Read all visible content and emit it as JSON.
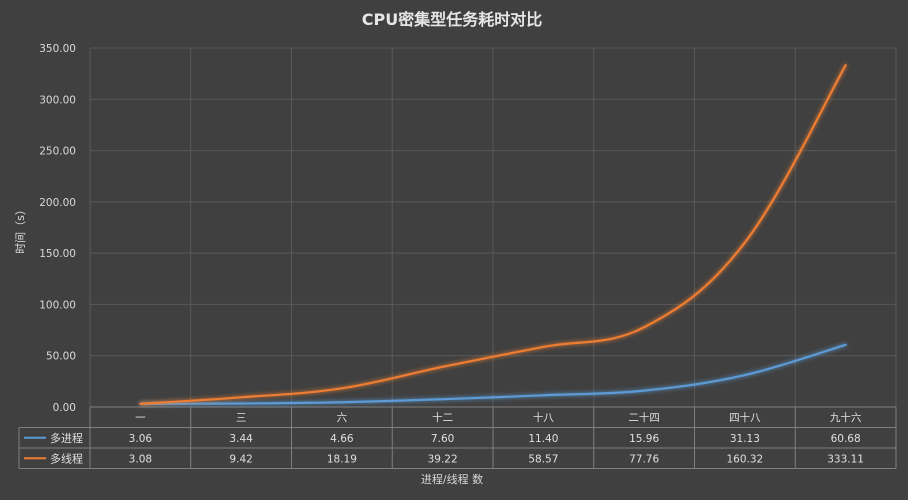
{
  "chart_data": {
    "type": "line",
    "title": "CPU密集型任务耗时对比",
    "xlabel": "进程/线程 数",
    "ylabel": "时间（s）",
    "ylim": [
      0,
      350
    ],
    "yticks": [
      "0.00",
      "50.00",
      "100.00",
      "150.00",
      "200.00",
      "250.00",
      "300.00",
      "350.00"
    ],
    "categories": [
      "一",
      "三",
      "六",
      "十二",
      "十八",
      "二十四",
      "四十八",
      "九十六"
    ],
    "grid": true,
    "legend": "data-table",
    "series": [
      {
        "name": "多进程",
        "color": "#5b9bd5",
        "values": [
          3.06,
          3.44,
          4.66,
          7.6,
          11.4,
          15.96,
          31.13,
          60.68
        ],
        "labels": [
          "3.06",
          "3.44",
          "4.66",
          "7.60",
          "11.40",
          "15.96",
          "31.13",
          "60.68"
        ]
      },
      {
        "name": "多线程",
        "color": "#ed7d31",
        "values": [
          3.08,
          9.42,
          18.19,
          39.22,
          58.57,
          77.76,
          160.32,
          333.11
        ],
        "labels": [
          "3.08",
          "9.42",
          "18.19",
          "39.22",
          "58.57",
          "77.76",
          "160.32",
          "333.11"
        ]
      }
    ]
  }
}
